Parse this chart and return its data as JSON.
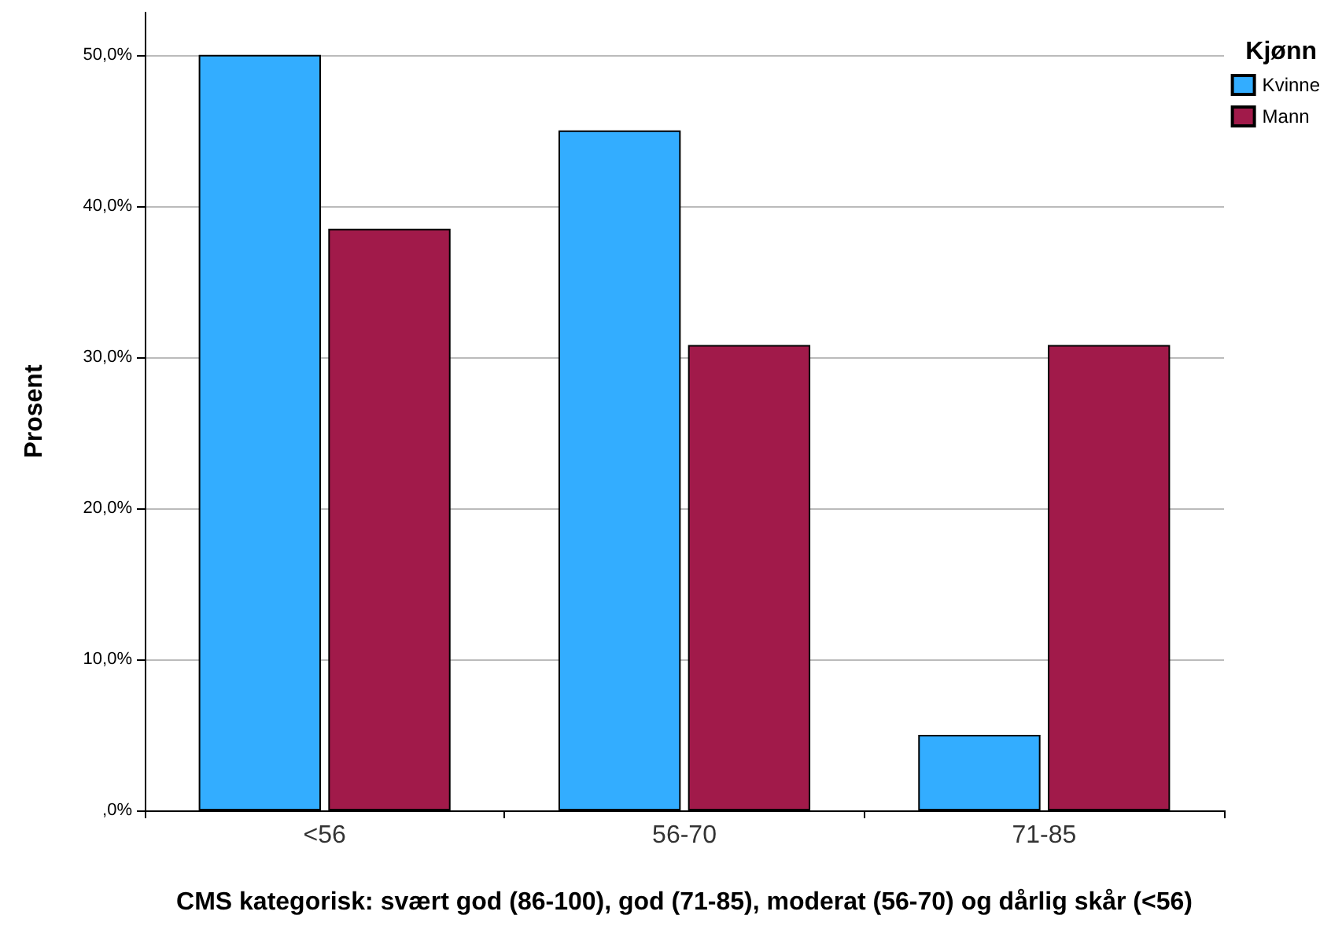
{
  "chart_data": {
    "type": "bar",
    "xlabel": "CMS kategorisk: svært god (86-100), god (71-85), moderat (56-70) og dårlig skår (<56)",
    "ylabel": "Prosent",
    "legend_title": "Kjønn",
    "categories": [
      "<56",
      "56-70",
      "71-85"
    ],
    "series": [
      {
        "name": "Kvinne",
        "color": "#33adff",
        "values": [
          50,
          45,
          5
        ]
      },
      {
        "name": "Mann",
        "color": "#a11a4a",
        "values": [
          38.5,
          30.8,
          30.8
        ]
      }
    ],
    "ylim": [
      0,
      52.8
    ],
    "yticks": [
      {
        "value": 0,
        "label": ",0%"
      },
      {
        "value": 10,
        "label": "10,0%"
      },
      {
        "value": 20,
        "label": "20,0%"
      },
      {
        "value": 30,
        "label": "30,0%"
      },
      {
        "value": 40,
        "label": "40,0%"
      },
      {
        "value": 50,
        "label": "50,0%"
      }
    ],
    "grid": "y",
    "legend": "top right"
  }
}
